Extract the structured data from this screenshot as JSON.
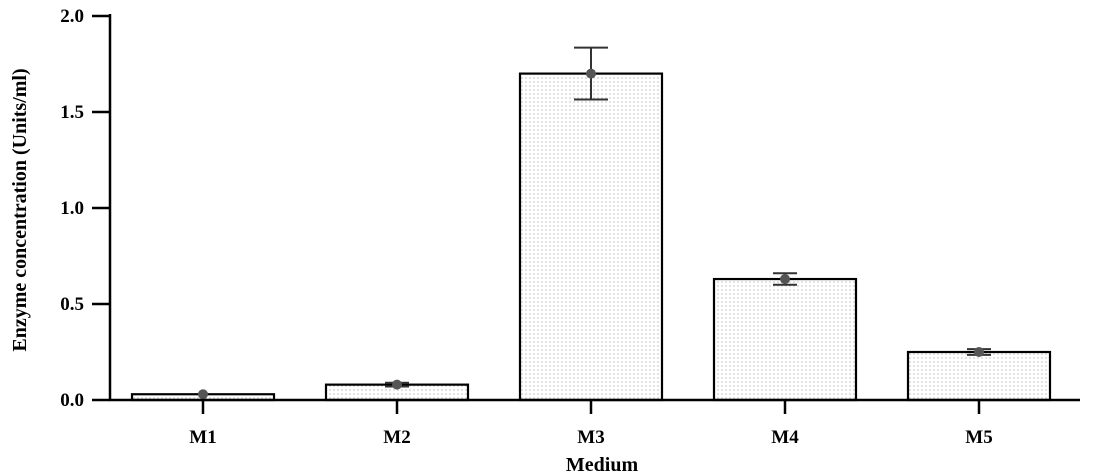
{
  "chart_data": {
    "type": "bar",
    "title": "",
    "xlabel": "Medium",
    "ylabel": "Enzyme concentration (Units/ml)",
    "categories": [
      "M1",
      "M2",
      "M3",
      "M4",
      "M5"
    ],
    "values": [
      0.03,
      0.08,
      1.7,
      0.63,
      0.25
    ],
    "errors": [
      0.0,
      0.01,
      0.135,
      0.03,
      0.015
    ],
    "ylim": [
      0,
      2.0
    ],
    "yticks": [
      "0.0",
      "0.5",
      "1.0",
      "1.5",
      "2.0"
    ],
    "grid": false,
    "legend": "none",
    "colors": {
      "bar_fill": "#ffffff",
      "bar_stroke": "#000000",
      "pattern_dot": "#9a9a9a",
      "point": "#555555",
      "error_bar": "#333333"
    }
  }
}
